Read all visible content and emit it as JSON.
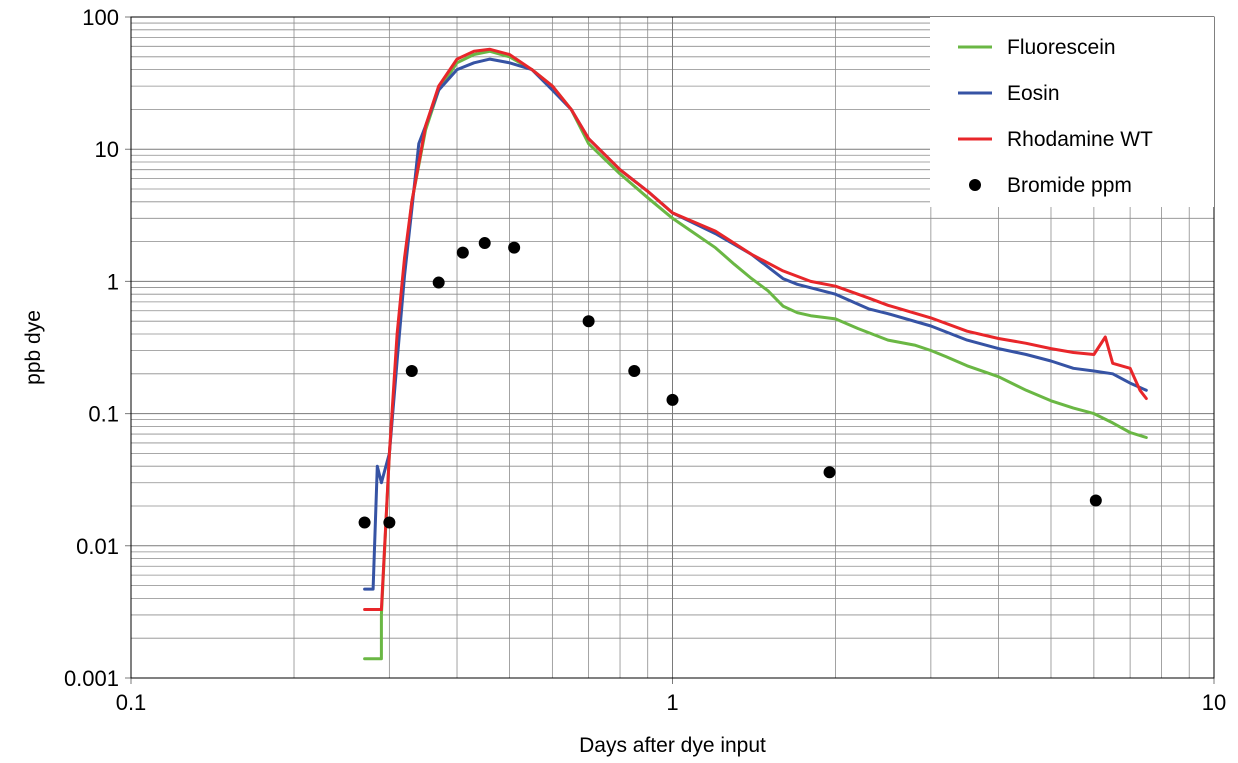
{
  "chart_data": {
    "type": "line",
    "title": "",
    "xlabel": "Days after dye input",
    "ylabel": "ppb dye",
    "xscale": "log",
    "yscale": "log",
    "xlim": [
      0.1,
      10
    ],
    "ylim": [
      0.001,
      100
    ],
    "grid": true,
    "legend_position": "top-right",
    "x_ticks": [
      {
        "value": 0.1,
        "label": "0.1"
      },
      {
        "value": 1,
        "label": "1"
      },
      {
        "value": 10,
        "label": "10"
      }
    ],
    "y_ticks": [
      {
        "value": 0.001,
        "label": "0.001"
      },
      {
        "value": 0.01,
        "label": "0.01"
      },
      {
        "value": 0.1,
        "label": "0.1"
      },
      {
        "value": 1,
        "label": "1"
      },
      {
        "value": 10,
        "label": "10"
      },
      {
        "value": 100,
        "label": "100"
      }
    ],
    "series": [
      {
        "name": "Fluorescein",
        "kind": "line",
        "color": "#6ab744",
        "x": [
          0.27,
          0.29,
          0.29,
          0.3,
          0.31,
          0.32,
          0.33,
          0.35,
          0.37,
          0.4,
          0.43,
          0.46,
          0.5,
          0.55,
          0.6,
          0.65,
          0.7,
          0.8,
          0.9,
          1.0,
          1.1,
          1.2,
          1.3,
          1.4,
          1.5,
          1.6,
          1.7,
          1.8,
          2.0,
          2.2,
          2.5,
          2.8,
          3.0,
          3.2,
          3.5,
          4.0,
          4.5,
          5.0,
          5.5,
          6.0,
          6.5,
          7.0,
          7.5
        ],
        "y": [
          0.0014,
          0.0014,
          0.003,
          0.05,
          0.3,
          1.3,
          4.0,
          14.0,
          28.0,
          45.0,
          52.0,
          55.0,
          50.0,
          40.0,
          30.0,
          20.0,
          11.0,
          6.5,
          4.3,
          3.0,
          2.3,
          1.8,
          1.35,
          1.05,
          0.85,
          0.65,
          0.58,
          0.55,
          0.52,
          0.44,
          0.36,
          0.33,
          0.3,
          0.27,
          0.23,
          0.19,
          0.15,
          0.125,
          0.11,
          0.1,
          0.085,
          0.072,
          0.066
        ]
      },
      {
        "name": "Eosin",
        "kind": "line",
        "color": "#3653a4",
        "x": [
          0.27,
          0.28,
          0.285,
          0.29,
          0.3,
          0.31,
          0.32,
          0.33,
          0.34,
          0.35,
          0.37,
          0.4,
          0.43,
          0.46,
          0.5,
          0.55,
          0.6,
          0.65,
          0.7,
          0.8,
          0.9,
          1.0,
          1.2,
          1.4,
          1.6,
          1.7,
          2.0,
          2.3,
          2.5,
          3.0,
          3.5,
          4.0,
          4.5,
          5.0,
          5.5,
          6.0,
          6.5,
          7.0,
          7.5
        ],
        "y": [
          0.0047,
          0.0047,
          0.04,
          0.03,
          0.05,
          0.25,
          1.1,
          3.5,
          11.0,
          15.0,
          28.0,
          40.0,
          45.0,
          48.0,
          45.0,
          40.0,
          28.0,
          20.0,
          12.0,
          7.0,
          4.8,
          3.3,
          2.3,
          1.6,
          1.05,
          0.95,
          0.8,
          0.62,
          0.57,
          0.46,
          0.36,
          0.31,
          0.28,
          0.25,
          0.22,
          0.21,
          0.2,
          0.17,
          0.15
        ]
      },
      {
        "name": "Rhodamine WT",
        "kind": "line",
        "color": "#e8262a",
        "x": [
          0.27,
          0.29,
          0.3,
          0.31,
          0.32,
          0.33,
          0.35,
          0.37,
          0.4,
          0.43,
          0.46,
          0.5,
          0.55,
          0.6,
          0.65,
          0.7,
          0.8,
          0.9,
          1.0,
          1.2,
          1.4,
          1.6,
          1.8,
          2.0,
          2.3,
          2.5,
          3.0,
          3.5,
          4.0,
          4.5,
          5.0,
          5.5,
          6.0,
          6.3,
          6.5,
          7.0,
          7.3,
          7.5
        ],
        "y": [
          0.0033,
          0.0033,
          0.05,
          0.4,
          1.5,
          4.0,
          15.0,
          30.0,
          48.0,
          55.0,
          57.0,
          52.0,
          40.0,
          30.0,
          20.0,
          12.0,
          7.0,
          4.8,
          3.3,
          2.4,
          1.6,
          1.2,
          1.0,
          0.92,
          0.75,
          0.66,
          0.53,
          0.42,
          0.37,
          0.34,
          0.31,
          0.29,
          0.28,
          0.38,
          0.24,
          0.22,
          0.15,
          0.13
        ]
      },
      {
        "name": "Bromide ppm",
        "kind": "scatter",
        "color": "#000000",
        "x": [
          0.27,
          0.3,
          0.33,
          0.37,
          0.41,
          0.45,
          0.51,
          0.7,
          0.85,
          1.0,
          1.95,
          6.05
        ],
        "y": [
          0.015,
          0.015,
          0.21,
          0.98,
          1.65,
          1.95,
          1.8,
          0.5,
          0.21,
          0.127,
          0.036,
          0.022
        ]
      }
    ]
  }
}
